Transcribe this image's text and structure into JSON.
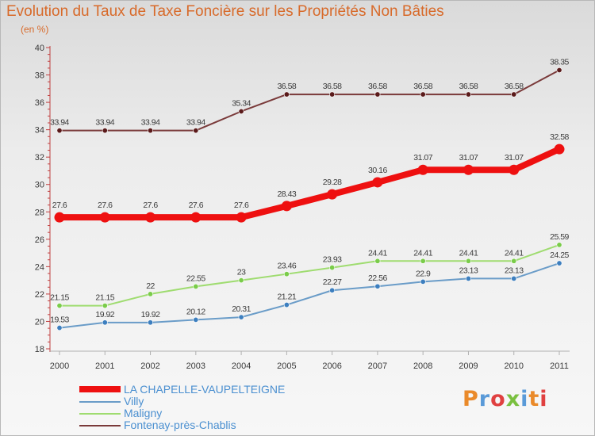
{
  "title": "Evolution du Taux de Taxe Foncière sur les Propriétés Non Bâties",
  "unit_label": "(en %)",
  "logo_text": "Proxiti",
  "chart_data": {
    "type": "line",
    "title": "Evolution du Taux de Taxe Foncière sur les Propriétés Non Bâties",
    "ylabel": "(en %)",
    "xlabel": "",
    "x": [
      "2000",
      "2001",
      "2002",
      "2003",
      "2004",
      "2005",
      "2006",
      "2007",
      "2008",
      "2009",
      "2010",
      "2011"
    ],
    "ylim": [
      18,
      40
    ],
    "yticks": [
      "18",
      "20",
      "22",
      "24",
      "26",
      "28",
      "30",
      "32",
      "34",
      "36",
      "38",
      "40"
    ],
    "grid": false,
    "legend_position": "bottom-left",
    "series": [
      {
        "name": "Fontenay-près-Chablis",
        "color": "#7a3a3a",
        "marker": "#5a1a1a",
        "values": [
          33.94,
          33.94,
          33.94,
          33.94,
          35.34,
          36.58,
          36.58,
          36.58,
          36.58,
          36.58,
          36.58,
          38.35
        ],
        "labels": [
          "33.94",
          "33.94",
          "33.94",
          "33.94",
          "35.34",
          "36.58",
          "36.58",
          "36.58",
          "36.58",
          "36.58",
          "36.58",
          "38.35"
        ]
      },
      {
        "name": "LA CHAPELLE-VAUPELTEIGNE",
        "color": "#ee1010",
        "marker": "#ee1010",
        "values": [
          27.6,
          27.6,
          27.6,
          27.6,
          27.6,
          28.43,
          29.28,
          30.16,
          31.07,
          31.07,
          31.07,
          32.58
        ],
        "labels": [
          "27.6",
          "27.6",
          "27.6",
          "27.6",
          "27.6",
          "28.43",
          "29.28",
          "30.16",
          "31.07",
          "31.07",
          "31.07",
          "32.58"
        ]
      },
      {
        "name": "Maligny",
        "color": "#9fdc70",
        "marker": "#7acc4a",
        "values": [
          21.15,
          21.15,
          22,
          22.55,
          23,
          23.46,
          23.93,
          24.41,
          24.41,
          24.41,
          24.41,
          25.59
        ],
        "labels": [
          "21.15",
          "21.15",
          "22",
          "22.55",
          "23",
          "23.46",
          "23.93",
          "24.41",
          "24.41",
          "24.41",
          "24.41",
          "25.59"
        ]
      },
      {
        "name": "Villy",
        "color": "#6a9cc8",
        "marker": "#3d7fbf",
        "values": [
          19.53,
          19.92,
          19.92,
          20.12,
          20.31,
          21.21,
          22.27,
          22.56,
          22.9,
          23.13,
          23.13,
          24.25
        ],
        "labels": [
          "19.53",
          "19.92",
          "19.92",
          "20.12",
          "20.31",
          "21.21",
          "22.27",
          "22.56",
          "22.9",
          "23.13",
          "23.13",
          "24.25"
        ]
      }
    ],
    "legend": [
      {
        "name": "LA CHAPELLE-VAUPELTEIGNE",
        "color": "#ee1010"
      },
      {
        "name": "Villy",
        "color": "#6a9cc8"
      },
      {
        "name": "Maligny",
        "color": "#9fdc70"
      },
      {
        "name": "Fontenay-près-Chablis",
        "color": "#7a3a3a"
      }
    ]
  }
}
